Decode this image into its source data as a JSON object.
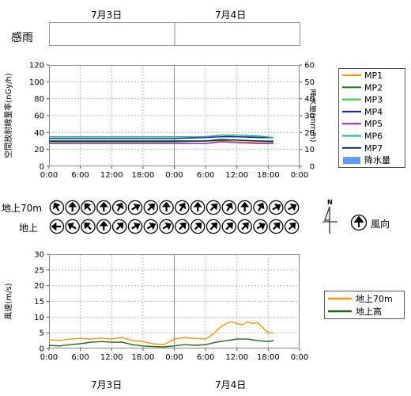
{
  "dates": {
    "day1": "7月3日",
    "day2": "7月4日"
  },
  "rain_sense": {
    "label": "感雨"
  },
  "colors": {
    "MP1": "#f39800",
    "MP2": "#1f7a1f",
    "MP3": "#39c939",
    "MP4": "#0a1ab0",
    "MP5": "#a020c0",
    "MP6": "#20b0a0",
    "MP7": "#0a2a5a",
    "rain": "#6699ff",
    "wind70": "#f39800",
    "windG": "#1a6a1a",
    "grid": "#bbbbbb",
    "divider": "#888888"
  },
  "chart_data": [
    {
      "type": "line",
      "ylabel": "空間放射線量率(nGy/h)",
      "y2label": "降水量(mm/h)",
      "ylim": [
        0,
        120
      ],
      "y2lim": [
        0,
        60
      ],
      "yticks": [
        "0",
        "20",
        "40",
        "60",
        "80",
        "100",
        "120"
      ],
      "y2ticks": [
        "0",
        "10",
        "20",
        "30",
        "40",
        "50",
        "60"
      ],
      "xlim_hours": [
        0,
        48
      ],
      "xticks": [
        "0:00",
        "6:00",
        "12:00",
        "18:00",
        "0:00",
        "6:00",
        "12:00",
        "18:00",
        "0:00"
      ],
      "grid": true,
      "legend_position": "right",
      "legend": [
        "MP1",
        "MP2",
        "MP3",
        "MP4",
        "MP5",
        "MP6",
        "MP7",
        "降水量"
      ],
      "series": [
        {
          "name": "MP1",
          "x_hours": [
            0,
            6,
            12,
            18,
            24,
            30,
            33,
            36,
            40,
            43
          ],
          "values": [
            27,
            27,
            27,
            27,
            27,
            27,
            30,
            29,
            28,
            27
          ]
        },
        {
          "name": "MP2",
          "x_hours": [
            0,
            6,
            12,
            18,
            24,
            30,
            33,
            36,
            40,
            43
          ],
          "values": [
            29,
            29,
            29,
            29,
            29,
            30,
            32,
            31,
            30,
            30
          ]
        },
        {
          "name": "MP3",
          "x_hours": [
            0,
            6,
            12,
            18,
            24,
            30,
            33,
            36,
            40,
            43
          ],
          "values": [
            35,
            35,
            35,
            35,
            35,
            35,
            37,
            35,
            35,
            34
          ]
        },
        {
          "name": "MP4",
          "x_hours": [
            0,
            6,
            12,
            18,
            24,
            30,
            33,
            36,
            40,
            43
          ],
          "values": [
            33,
            33,
            33,
            33,
            33,
            34,
            35,
            35,
            34,
            34
          ]
        },
        {
          "name": "MP5",
          "x_hours": [
            0,
            6,
            12,
            18,
            24,
            30,
            33,
            36,
            40,
            43
          ],
          "values": [
            27,
            27,
            27,
            27,
            27,
            27,
            29,
            28,
            27,
            27
          ]
        },
        {
          "name": "MP6",
          "x_hours": [
            0,
            6,
            12,
            18,
            24,
            30,
            33,
            36,
            40,
            43
          ],
          "values": [
            35,
            35,
            35,
            35,
            35,
            35,
            37,
            37,
            36,
            34
          ]
        },
        {
          "name": "MP7",
          "x_hours": [
            0,
            6,
            12,
            18,
            24,
            30,
            33,
            36,
            40,
            43
          ],
          "values": [
            30,
            30,
            30,
            30,
            30,
            30,
            31,
            31,
            30,
            29
          ]
        }
      ],
      "rain_values": []
    },
    {
      "type": "line",
      "ylabel": "風速(m/s)",
      "ylim": [
        0,
        30
      ],
      "yticks": [
        "0",
        "5",
        "10",
        "15",
        "20",
        "25",
        "30"
      ],
      "xlim_hours": [
        0,
        48
      ],
      "xticks": [
        "0:00",
        "6:00",
        "12:00",
        "18:00",
        "0:00",
        "6:00",
        "12:00",
        "18:00",
        "0:00"
      ],
      "grid": true,
      "legend_position": "right",
      "series": [
        {
          "name": "地上70m",
          "x_hours": [
            0,
            2,
            4,
            6,
            8,
            10,
            12,
            14,
            16,
            18,
            20,
            22,
            24,
            26,
            28,
            30,
            31,
            32,
            33,
            34,
            35,
            36,
            37,
            38,
            39,
            40,
            41,
            42,
            43
          ],
          "values": [
            2.8,
            2.5,
            3.0,
            3.2,
            3.0,
            3.3,
            3.0,
            3.5,
            2.5,
            2.2,
            1.5,
            1.2,
            3.0,
            3.5,
            3.2,
            3.0,
            4.0,
            5.5,
            7.0,
            8.0,
            8.5,
            8.0,
            7.5,
            8.5,
            8.0,
            8.2,
            6.5,
            5.0,
            5.0
          ]
        },
        {
          "name": "地上高",
          "x_hours": [
            0,
            2,
            4,
            6,
            8,
            10,
            12,
            14,
            16,
            18,
            20,
            22,
            24,
            26,
            28,
            30,
            32,
            34,
            36,
            38,
            40,
            42,
            43
          ],
          "values": [
            1.0,
            0.8,
            1.2,
            1.5,
            2.0,
            2.2,
            2.0,
            2.0,
            1.2,
            0.8,
            0.6,
            0.5,
            0.8,
            1.2,
            1.0,
            1.2,
            2.0,
            2.5,
            3.0,
            3.0,
            2.5,
            2.2,
            2.5
          ]
        }
      ]
    }
  ],
  "wind_direction": {
    "label70": "地上70m",
    "labelGround": "地上",
    "legend_label": "風向",
    "north": "N",
    "upper_angles": [
      330,
      0,
      320,
      0,
      30,
      60,
      45,
      0,
      30,
      0,
      45,
      30,
      0,
      30,
      60,
      60
    ],
    "lower_angles": [
      270,
      300,
      315,
      0,
      45,
      60,
      60,
      60,
      45,
      45,
      45,
      45,
      45,
      60,
      45,
      45
    ]
  }
}
